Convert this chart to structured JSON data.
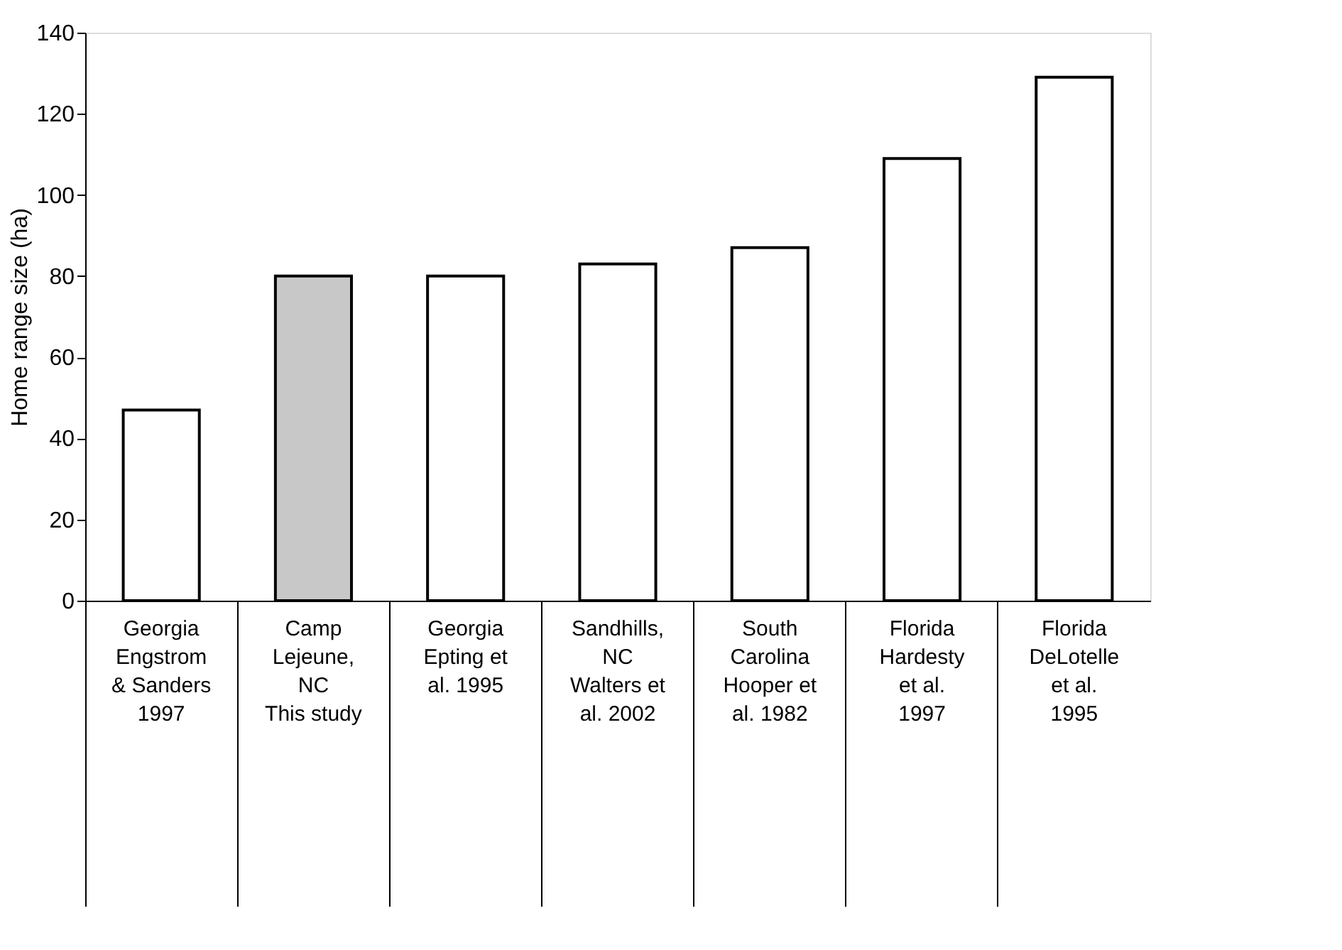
{
  "chart_data": {
    "type": "bar",
    "ylabel": "Home range size (ha)",
    "categories": [
      "Georgia\n\nEngstrom\n& Sanders\n1997",
      "Camp\nLejeune,\nNC\n\nThis study",
      "Georgia\n\nEpting et\nal. 1995",
      "Sandhills,\nNC\n\nWalters et\nal. 2002",
      "South\nCarolina\n\nHooper et\nal. 1982",
      "Florida\n\nHardesty\net al.\n1997",
      "Florida\n\nDeLotelle\net al.\n1995"
    ],
    "values": [
      47,
      80,
      80,
      83,
      87,
      109,
      129
    ],
    "colors": [
      "#ffffff",
      "#c8c8c8",
      "#ffffff",
      "#ffffff",
      "#ffffff",
      "#ffffff",
      "#ffffff"
    ],
    "ylim": [
      0,
      140
    ],
    "yticks": [
      0,
      20,
      40,
      60,
      80,
      100,
      120,
      140
    ],
    "grid": false
  }
}
